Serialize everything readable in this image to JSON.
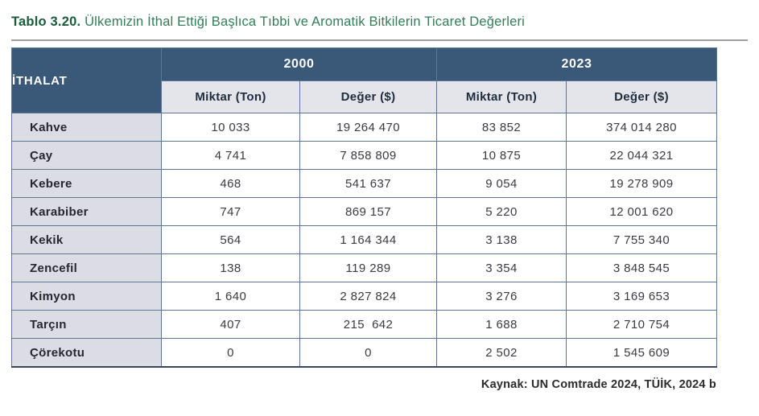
{
  "title": {
    "label": "Tablo 3.20.",
    "text": "Ülkemizin İthal Ettiği Başlıca Tıbbi ve Aromatik Bitkilerin Ticaret Değerleri"
  },
  "table": {
    "corner_header": "İTHALAT",
    "year_groups": [
      {
        "year": "2000",
        "columns": [
          "Miktar (Ton)",
          "Değer ($)"
        ]
      },
      {
        "year": "2023",
        "columns": [
          "Miktar (Ton)",
          "Değer ($)"
        ]
      }
    ],
    "rows": [
      {
        "label": "Kahve",
        "values": [
          "10 033",
          "19 264 470",
          "83 852",
          "374 014 280"
        ]
      },
      {
        "label": "Çay",
        "values": [
          "4 741",
          "7 858 809",
          "10 875",
          "22 044 321"
        ]
      },
      {
        "label": "Kebere",
        "values": [
          "468",
          "541 637",
          "9 054",
          "19 278 909"
        ]
      },
      {
        "label": "Karabiber",
        "values": [
          "747",
          "869 157",
          "5 220",
          "12 001 620"
        ]
      },
      {
        "label": "Kekik",
        "values": [
          "564",
          "1 164 344",
          "3 138",
          "7 755 340"
        ]
      },
      {
        "label": "Zencefil",
        "values": [
          "138",
          "119 289",
          "3 354",
          "3 848 545"
        ]
      },
      {
        "label": "Kimyon",
        "values": [
          "1 640",
          "2 827 824",
          "3 276",
          "3 169 653"
        ]
      },
      {
        "label": "Tarçın",
        "values": [
          "407",
          "215  642",
          "1 688",
          "2 710 754"
        ]
      },
      {
        "label": "Çörekotu",
        "values": [
          "0",
          "0",
          "2 502",
          "1 545 609"
        ]
      }
    ]
  },
  "footer": {
    "source": "Kaynak: UN Comtrade 2024, TÜİK, 2024 b"
  },
  "colors": {
    "header_bg": "#3a5878",
    "subheader_bg": "#e4e5ea",
    "row_label_bg": "#dcdde4",
    "table_border": "#5b7697",
    "title_number_green": "#1a5b39",
    "title_text_green": "#337d57",
    "rule_gray": "#9e9e9e"
  }
}
